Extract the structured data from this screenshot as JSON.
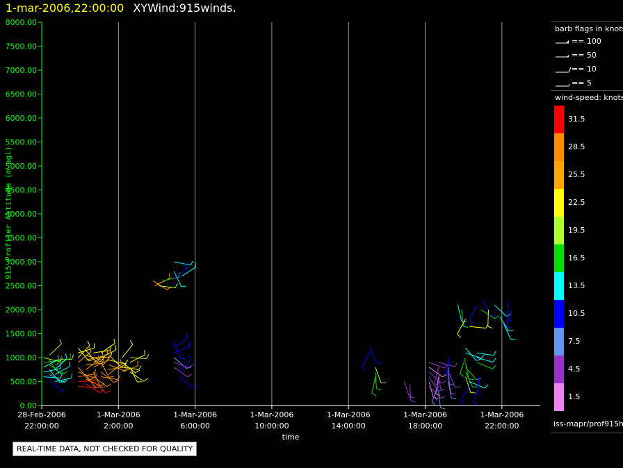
{
  "title": {
    "time": "1-mar-2006,22:00:00",
    "text": "XYWind:915winds."
  },
  "chart_data": {
    "type": "scatter",
    "ylabel": "915 Profiler Altitude (m agl)",
    "xlabel": "time",
    "ylim": [
      0,
      8000
    ],
    "xlim_hours": [
      -2,
      24
    ],
    "y_ticks": [
      "0.00",
      "500.00",
      "1000.00",
      "1500.00",
      "2000.00",
      "2500.00",
      "3000.00",
      "3500.00",
      "4000.00",
      "4500.00",
      "5000.00",
      "5500.00",
      "6000.00",
      "6500.00",
      "7000.00",
      "7500.00",
      "8000.00"
    ],
    "x_ticks": [
      {
        "date": "28-Feb-2006",
        "time": "22:00:00"
      },
      {
        "date": "1-Mar-2006",
        "time": "2:00:00"
      },
      {
        "date": "1-Mar-2006",
        "time": "6:00:00"
      },
      {
        "date": "1-Mar-2006",
        "time": "10:00:00"
      },
      {
        "date": "1-Mar-2006",
        "time": "14:00:00"
      },
      {
        "date": "1-Mar-2006",
        "time": "18:00:00"
      },
      {
        "date": "1-Mar-2006",
        "time": "22:00:00"
      }
    ],
    "grid": "vertical",
    "series": [
      {
        "name": "wind barbs",
        "points": [
          {
            "t": -1.9,
            "z": 1000,
            "ws": 18
          },
          {
            "t": -1.9,
            "z": 900,
            "ws": 16
          },
          {
            "t": -1.9,
            "z": 800,
            "ws": 14
          },
          {
            "t": -1.9,
            "z": 700,
            "ws": 13
          },
          {
            "t": -1.9,
            "z": 600,
            "ws": 12
          },
          {
            "t": -1.6,
            "z": 1050,
            "ws": 19
          },
          {
            "t": -1.6,
            "z": 950,
            "ws": 17
          },
          {
            "t": -1.6,
            "z": 850,
            "ws": 15
          },
          {
            "t": -1.6,
            "z": 750,
            "ws": 14
          },
          {
            "t": -1.6,
            "z": 650,
            "ws": 12
          },
          {
            "t": -1.6,
            "z": 550,
            "ws": 11
          },
          {
            "t": -1.3,
            "z": 950,
            "ws": 18
          },
          {
            "t": -1.3,
            "z": 850,
            "ws": 16
          },
          {
            "t": -1.3,
            "z": 750,
            "ws": 14
          },
          {
            "t": -1.3,
            "z": 650,
            "ws": 13
          },
          {
            "t": -1.3,
            "z": 500,
            "ws": 12
          },
          {
            "t": -0.1,
            "z": 1200,
            "ws": 22
          },
          {
            "t": -0.1,
            "z": 1100,
            "ws": 22
          },
          {
            "t": -0.1,
            "z": 1000,
            "ws": 23
          },
          {
            "t": -0.1,
            "z": 900,
            "ws": 25
          },
          {
            "t": -0.1,
            "z": 800,
            "ws": 26
          },
          {
            "t": -0.1,
            "z": 700,
            "ws": 27
          },
          {
            "t": -0.1,
            "z": 600,
            "ws": 28
          },
          {
            "t": -0.1,
            "z": 500,
            "ws": 30
          },
          {
            "t": -0.1,
            "z": 400,
            "ws": 32
          },
          {
            "t": 0.3,
            "z": 1150,
            "ws": 22
          },
          {
            "t": 0.3,
            "z": 1050,
            "ws": 23
          },
          {
            "t": 0.3,
            "z": 950,
            "ws": 24
          },
          {
            "t": 0.3,
            "z": 850,
            "ws": 26
          },
          {
            "t": 0.3,
            "z": 750,
            "ws": 27
          },
          {
            "t": 0.3,
            "z": 650,
            "ws": 28
          },
          {
            "t": 0.3,
            "z": 550,
            "ws": 29
          },
          {
            "t": 0.3,
            "z": 450,
            "ws": 31
          },
          {
            "t": 0.7,
            "z": 1100,
            "ws": 22
          },
          {
            "t": 0.7,
            "z": 1000,
            "ws": 24
          },
          {
            "t": 0.7,
            "z": 900,
            "ws": 25
          },
          {
            "t": 0.7,
            "z": 800,
            "ws": 27
          },
          {
            "t": 0.7,
            "z": 700,
            "ws": 28
          },
          {
            "t": 0.7,
            "z": 600,
            "ws": 29
          },
          {
            "t": 0.7,
            "z": 500,
            "ws": 31
          },
          {
            "t": 1.1,
            "z": 1100,
            "ws": 21
          },
          {
            "t": 1.1,
            "z": 1000,
            "ws": 23
          },
          {
            "t": 1.1,
            "z": 900,
            "ws": 24
          },
          {
            "t": 1.1,
            "z": 800,
            "ws": 26
          },
          {
            "t": 1.1,
            "z": 700,
            "ws": 27
          },
          {
            "t": 1.1,
            "z": 600,
            "ws": 28
          },
          {
            "t": 1.5,
            "z": 1050,
            "ws": 21
          },
          {
            "t": 1.5,
            "z": 950,
            "ws": 22
          },
          {
            "t": 1.5,
            "z": 850,
            "ws": 24
          },
          {
            "t": 1.5,
            "z": 750,
            "ws": 25
          },
          {
            "t": 1.5,
            "z": 650,
            "ws": 26
          },
          {
            "t": 2.2,
            "z": 1000,
            "ws": 21
          },
          {
            "t": 2.2,
            "z": 900,
            "ws": 22
          },
          {
            "t": 2.2,
            "z": 800,
            "ws": 23
          },
          {
            "t": 2.2,
            "z": 700,
            "ws": 24
          },
          {
            "t": 2.6,
            "z": 1000,
            "ws": 20
          },
          {
            "t": 2.6,
            "z": 900,
            "ws": 21
          },
          {
            "t": 2.6,
            "z": 800,
            "ws": 22
          },
          {
            "t": 2.6,
            "z": 700,
            "ws": 23
          },
          {
            "t": 3.8,
            "z": 2600,
            "ws": 28
          },
          {
            "t": 3.9,
            "z": 2500,
            "ws": 25
          },
          {
            "t": 4.1,
            "z": 2500,
            "ws": 18
          },
          {
            "t": 4.3,
            "z": 2600,
            "ws": 16
          },
          {
            "t": 4.9,
            "z": 3000,
            "ws": 12
          },
          {
            "t": 4.9,
            "z": 2800,
            "ws": 12
          },
          {
            "t": 4.9,
            "z": 2650,
            "ws": 11
          },
          {
            "t": 5.3,
            "z": 2700,
            "ws": 13
          },
          {
            "t": 4.9,
            "z": 1300,
            "ws": 11
          },
          {
            "t": 4.9,
            "z": 1200,
            "ws": 10
          },
          {
            "t": 4.9,
            "z": 1100,
            "ws": 9
          },
          {
            "t": 4.9,
            "z": 1000,
            "ws": 6
          },
          {
            "t": 4.9,
            "z": 900,
            "ws": 4
          },
          {
            "t": 4.9,
            "z": 800,
            "ws": 3
          },
          {
            "t": 5.2,
            "z": 700,
            "ws": 9
          },
          {
            "t": 5.2,
            "z": 600,
            "ws": 10
          },
          {
            "t": 15.1,
            "z": 1200,
            "ws": 11
          },
          {
            "t": 15.1,
            "z": 1100,
            "ws": 11
          },
          {
            "t": 15.4,
            "z": 800,
            "ws": 18
          },
          {
            "t": 15.4,
            "z": 700,
            "ws": 17
          },
          {
            "t": 15.4,
            "z": 600,
            "ws": 16
          },
          {
            "t": 16.9,
            "z": 500,
            "ws": 4
          },
          {
            "t": 17.2,
            "z": 450,
            "ws": 3
          },
          {
            "t": 18.2,
            "z": 900,
            "ws": 3
          },
          {
            "t": 18.2,
            "z": 800,
            "ws": 2
          },
          {
            "t": 18.2,
            "z": 700,
            "ws": 4
          },
          {
            "t": 18.2,
            "z": 600,
            "ws": 3
          },
          {
            "t": 18.2,
            "z": 500,
            "ws": 2
          },
          {
            "t": 18.2,
            "z": 400,
            "ws": 3
          },
          {
            "t": 18.7,
            "z": 900,
            "ws": 4
          },
          {
            "t": 18.7,
            "z": 800,
            "ws": 5
          },
          {
            "t": 18.7,
            "z": 700,
            "ws": 3
          },
          {
            "t": 18.7,
            "z": 600,
            "ws": 2
          },
          {
            "t": 18.7,
            "z": 500,
            "ws": 4
          },
          {
            "t": 18.7,
            "z": 400,
            "ws": 6
          },
          {
            "t": 18.7,
            "z": 300,
            "ws": 7
          },
          {
            "t": 19.2,
            "z": 1000,
            "ws": 9
          },
          {
            "t": 19.2,
            "z": 900,
            "ws": 11
          },
          {
            "t": 19.2,
            "z": 800,
            "ws": 6
          },
          {
            "t": 19.2,
            "z": 700,
            "ws": 4
          },
          {
            "t": 19.2,
            "z": 600,
            "ws": 3
          },
          {
            "t": 19.2,
            "z": 500,
            "ws": 8
          },
          {
            "t": 19.7,
            "z": 2100,
            "ws": 13
          },
          {
            "t": 19.9,
            "z": 2000,
            "ws": 15
          },
          {
            "t": 20.1,
            "z": 1800,
            "ws": 21
          },
          {
            "t": 20.3,
            "z": 1650,
            "ws": 23
          },
          {
            "t": 20.1,
            "z": 1200,
            "ws": 13
          },
          {
            "t": 20.1,
            "z": 1100,
            "ws": 14
          },
          {
            "t": 20.1,
            "z": 1000,
            "ws": 15
          },
          {
            "t": 20.1,
            "z": 900,
            "ws": 16
          },
          {
            "t": 20.1,
            "z": 800,
            "ws": 17
          },
          {
            "t": 20.1,
            "z": 700,
            "ws": 16
          },
          {
            "t": 20.1,
            "z": 600,
            "ws": 18
          },
          {
            "t": 20.3,
            "z": 500,
            "ws": 12
          },
          {
            "t": 20.3,
            "z": 400,
            "ws": 10
          },
          {
            "t": 20.7,
            "z": 1100,
            "ws": 12
          },
          {
            "t": 20.7,
            "z": 1000,
            "ws": 14
          },
          {
            "t": 20.7,
            "z": 900,
            "ws": 16
          },
          {
            "t": 20.8,
            "z": 600,
            "ws": 10
          },
          {
            "t": 20.8,
            "z": 400,
            "ws": 9
          },
          {
            "t": 20.7,
            "z": 2100,
            "ws": 11
          },
          {
            "t": 20.9,
            "z": 2000,
            "ws": 17
          },
          {
            "t": 21.0,
            "z": 2200,
            "ws": 10
          },
          {
            "t": 21.3,
            "z": 2000,
            "ws": 19
          },
          {
            "t": 21.6,
            "z": 2100,
            "ws": 13
          },
          {
            "t": 21.9,
            "z": 1850,
            "ws": 12
          },
          {
            "t": 22.1,
            "z": 1700,
            "ws": 14
          },
          {
            "t": 22.3,
            "z": 2150,
            "ws": 10
          },
          {
            "t": 22.5,
            "z": 2000,
            "ws": 9
          }
        ]
      }
    ]
  },
  "barb_legend": {
    "title": "barb flags in knots",
    "items": [
      "== 100",
      "== 50",
      "== 10",
      "== 5"
    ]
  },
  "colorbar": {
    "title": "wind-speed: knots",
    "labels": [
      "31.5",
      "28.5",
      "25.5",
      "22.5",
      "19.5",
      "16.5",
      "13.5",
      "10.5",
      "7.5",
      "4.5",
      "1.5"
    ],
    "colors": [
      "#ff0000",
      "#ff8c00",
      "#ffa500",
      "#ffff00",
      "#adff2f",
      "#00dd00",
      "#00ffff",
      "#0000ff",
      "#6495ed",
      "#9932cc",
      "#ee82ee"
    ]
  },
  "source": "iss-mapr/prof915h",
  "warning": "REAL-TIME DATA, NOT CHECKED FOR QUALITY"
}
